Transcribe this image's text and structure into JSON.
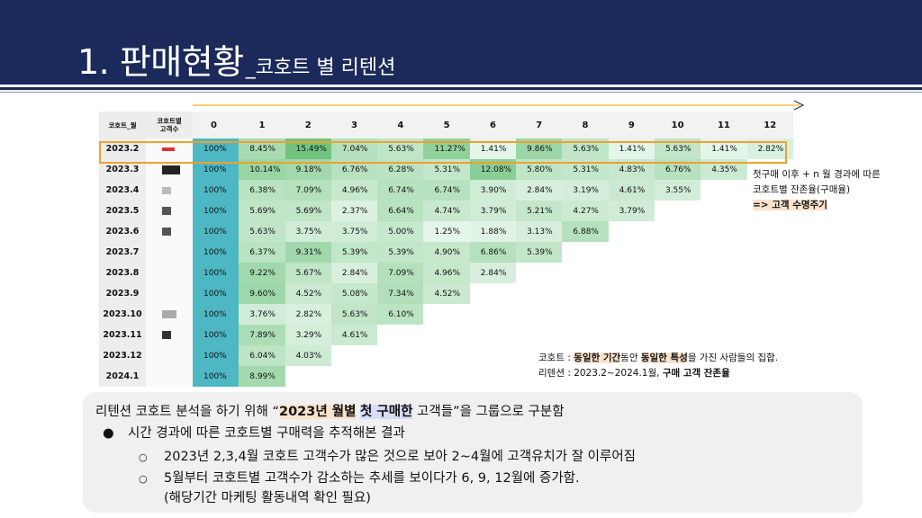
{
  "header": {
    "title_main": "1. 판매현황",
    "title_sub": "_코호트 별 리텐션"
  },
  "table": {
    "col_header_month": "코호트_월",
    "col_header_count_line1": "코호트별",
    "col_header_count_line2": "고객수",
    "period_headers": [
      "0",
      "1",
      "2",
      "3",
      "4",
      "5",
      "6",
      "7",
      "8",
      "9",
      "10",
      "11",
      "12"
    ],
    "rows": [
      {
        "cohort": "2023.2",
        "values": [
          "100%",
          "8.45%",
          "15.49%",
          "7.04%",
          "5.63%",
          "11.27%",
          "1.41%",
          "9.86%",
          "5.63%",
          "1.41%",
          "5.63%",
          "1.41%",
          "2.82%"
        ]
      },
      {
        "cohort": "2023.3",
        "values": [
          "100%",
          "10.14%",
          "9.18%",
          "6.76%",
          "6.28%",
          "5.31%",
          "12.08%",
          "5.80%",
          "5.31%",
          "4.83%",
          "6.76%",
          "4.35%"
        ]
      },
      {
        "cohort": "2023.4",
        "values": [
          "100%",
          "6.38%",
          "7.09%",
          "4.96%",
          "6.74%",
          "6.74%",
          "3.90%",
          "2.84%",
          "3.19%",
          "4.61%",
          "3.55%"
        ]
      },
      {
        "cohort": "2023.5",
        "values": [
          "100%",
          "5.69%",
          "5.69%",
          "2.37%",
          "6.64%",
          "4.74%",
          "3.79%",
          "5.21%",
          "4.27%",
          "3.79%"
        ]
      },
      {
        "cohort": "2023.6",
        "values": [
          "100%",
          "5.63%",
          "3.75%",
          "3.75%",
          "5.00%",
          "1.25%",
          "1.88%",
          "3.13%",
          "6.88%"
        ]
      },
      {
        "cohort": "2023.7",
        "values": [
          "100%",
          "6.37%",
          "9.31%",
          "5.39%",
          "5.39%",
          "4.90%",
          "6.86%",
          "5.39%"
        ]
      },
      {
        "cohort": "2023.8",
        "values": [
          "100%",
          "9.22%",
          "5.67%",
          "2.84%",
          "7.09%",
          "4.96%",
          "2.84%"
        ]
      },
      {
        "cohort": "2023.9",
        "values": [
          "100%",
          "9.60%",
          "4.52%",
          "5.08%",
          "7.34%",
          "4.52%"
        ]
      },
      {
        "cohort": "2023.10",
        "values": [
          "100%",
          "3.76%",
          "2.82%",
          "5.63%",
          "6.10%"
        ]
      },
      {
        "cohort": "2023.11",
        "values": [
          "100%",
          "7.89%",
          "3.29%",
          "4.61%"
        ]
      },
      {
        "cohort": "2023.12",
        "values": [
          "100%",
          "6.04%",
          "4.03%"
        ]
      },
      {
        "cohort": "2024.1",
        "values": [
          "100%",
          "8.99%"
        ]
      }
    ]
  },
  "side_note": {
    "line1": "첫구매 이후 + n 월 경과에 따른",
    "line2": "코호트별 잔존율(구매율)",
    "line3": "=> 고객 수명주기"
  },
  "definitions": {
    "cohort_label": "코호트 : ",
    "cohort_hl1": "동일한 기간",
    "cohort_mid": "동안 ",
    "cohort_hl2": "동일한 특성",
    "cohort_end": "을 가진 사람들의 집합.",
    "retention_label": "리텐션 : 2023.2~2024.1월, ",
    "retention_bold": "구매 고객 잔존율"
  },
  "summary": {
    "title_pre": "리텐션 코호트 분석을 하기 위해 “",
    "title_hl1": "2023년 월별",
    "title_hl2": "첫 구매한",
    "title_post": " 고객들”을 그룹으로 구분함",
    "bullet_marker": "●",
    "bullet": "시간 경과에 따른 코호트별 구매력을 추적해본 결과",
    "sub_marker": "○",
    "sub1": "2023년 2,3,4월 코호트 고객수가 많은 것으로 보아 2~4월에 고객유치가 잘 이루어짐",
    "sub2": "5월부터 코호트별 고객수가 감소하는 추세를 보이다가 6, 9, 12월에 증가함.",
    "sub3": "(해당기간 마케팅 활동내역 확인 필요)"
  },
  "colors": {
    "header_bg": "#1b2a5a",
    "zero_col": "#4db8c4",
    "highlight_border": "#f0a030",
    "highlight_fill": "#fbe3cc"
  }
}
